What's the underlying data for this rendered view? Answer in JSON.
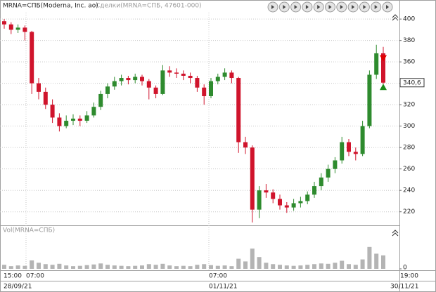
{
  "chart_data": {
    "type": "candlestick",
    "title": "MRNA=СПБ(Moderna, Inc. ао)",
    "subtitle": "Сделки(MRNA=СПБ, 47601-000)",
    "volume_title": "Vol(MRNA=СПБ)",
    "time_labels": [
      "15:00",
      "07:00",
      "07:00",
      "19:00"
    ],
    "date_labels": [
      "28/09/21",
      "01/11/21",
      "30/11/21"
    ],
    "ylim": [
      208,
      406
    ],
    "yticks": [
      400,
      380,
      360,
      340,
      320,
      300,
      280,
      260,
      240,
      220
    ],
    "grid": true,
    "up_color": "#2e8b2e",
    "down_color": "#d0142c",
    "volume_color": "#b4b4b4",
    "vol_ylim": [
      0,
      100
    ],
    "vol_yticks": [
      0
    ],
    "last_price": {
      "value": 340.6,
      "label": "340,6"
    },
    "trades": [
      {
        "price": 363,
        "direction": "down",
        "color": "#e00000"
      },
      {
        "price": 337,
        "direction": "up",
        "color": "#1a8a1a"
      }
    ],
    "open": [
      398,
      395,
      390,
      392,
      388,
      340,
      332,
      320,
      308,
      300,
      305,
      307,
      305,
      310,
      318,
      330,
      337,
      342,
      345,
      343,
      346,
      342,
      336,
      330,
      352,
      350,
      349,
      347,
      345,
      336,
      328,
      342,
      346,
      350,
      345,
      285,
      280,
      222,
      240,
      238,
      232,
      226,
      224,
      228,
      230,
      236,
      244,
      252,
      260,
      268,
      285,
      276,
      274,
      300,
      348,
      368
    ],
    "high": [
      400,
      397,
      395,
      394,
      389,
      345,
      336,
      325,
      312,
      310,
      311,
      310,
      314,
      322,
      333,
      340,
      346,
      348,
      347,
      349,
      348,
      344,
      338,
      357,
      356,
      354,
      352,
      350,
      347,
      339,
      345,
      349,
      354,
      352,
      346,
      290,
      282,
      244,
      246,
      241,
      236,
      229,
      232,
      234,
      239,
      248,
      256,
      264,
      271,
      290,
      288,
      280,
      305,
      352,
      376,
      374
    ],
    "low": [
      391,
      386,
      387,
      380,
      330,
      325,
      316,
      303,
      295,
      298,
      301,
      300,
      303,
      308,
      315,
      326,
      334,
      338,
      339,
      340,
      338,
      325,
      326,
      329,
      346,
      345,
      343,
      340,
      332,
      320,
      326,
      339,
      343,
      340,
      275,
      274,
      210,
      214,
      233,
      228,
      222,
      219,
      221,
      224,
      227,
      233,
      240,
      248,
      256,
      265,
      272,
      268,
      272,
      298,
      344,
      336
    ],
    "close": [
      395,
      390,
      392,
      388,
      340,
      332,
      320,
      308,
      300,
      305,
      307,
      305,
      310,
      318,
      330,
      337,
      342,
      345,
      343,
      346,
      342,
      336,
      330,
      352,
      350,
      349,
      347,
      345,
      336,
      328,
      342,
      346,
      350,
      345,
      285,
      280,
      222,
      240,
      238,
      232,
      226,
      224,
      228,
      230,
      236,
      244,
      252,
      260,
      268,
      285,
      276,
      274,
      300,
      348,
      368,
      340.6
    ],
    "volume": [
      12,
      8,
      10,
      9,
      25,
      18,
      14,
      12,
      15,
      10,
      8,
      9,
      11,
      13,
      16,
      12,
      10,
      9,
      8,
      9,
      10,
      14,
      12,
      15,
      10,
      8,
      9,
      8,
      12,
      14,
      11,
      9,
      10,
      8,
      30,
      22,
      60,
      35,
      18,
      14,
      12,
      10,
      9,
      10,
      12,
      14,
      16,
      15,
      18,
      24,
      14,
      12,
      28,
      65,
      45,
      40
    ]
  }
}
